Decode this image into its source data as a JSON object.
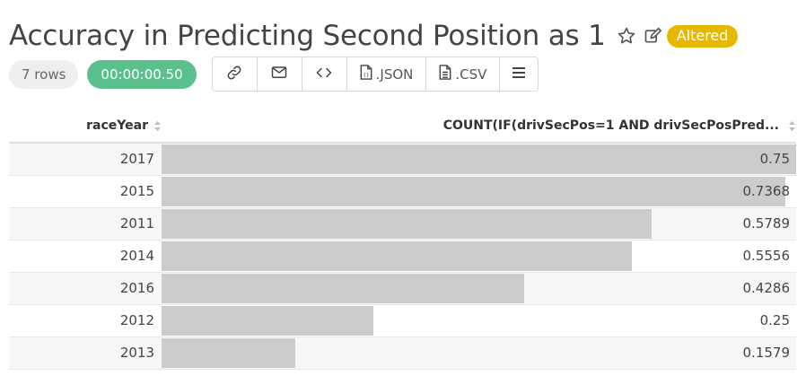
{
  "header": {
    "title": "Accuracy in Predicting Second Position as 1",
    "badge": "Altered",
    "badge_color": "#e6b800",
    "star_icon": "star-icon",
    "edit_icon": "edit-icon"
  },
  "meta": {
    "rows": "7 rows",
    "duration": "00:00:00.50",
    "duration_color": "#5ac18e"
  },
  "toolbar": {
    "json_label": ".JSON",
    "csv_label": ".CSV"
  },
  "table": {
    "columns": [
      "raceYear",
      "COUNT(IF(drivSecPos=1 AND drivSecPosPred..."
    ],
    "rows": [
      {
        "year": "2017",
        "value": "0.75",
        "fraction": 1.0
      },
      {
        "year": "2015",
        "value": "0.7368",
        "fraction": 0.9824
      },
      {
        "year": "2011",
        "value": "0.5789",
        "fraction": 0.7719
      },
      {
        "year": "2014",
        "value": "0.5556",
        "fraction": 0.7408
      },
      {
        "year": "2016",
        "value": "0.4286",
        "fraction": 0.5715
      },
      {
        "year": "2012",
        "value": "0.25",
        "fraction": 0.3333
      },
      {
        "year": "2013",
        "value": "0.1579",
        "fraction": 0.2105
      }
    ]
  }
}
